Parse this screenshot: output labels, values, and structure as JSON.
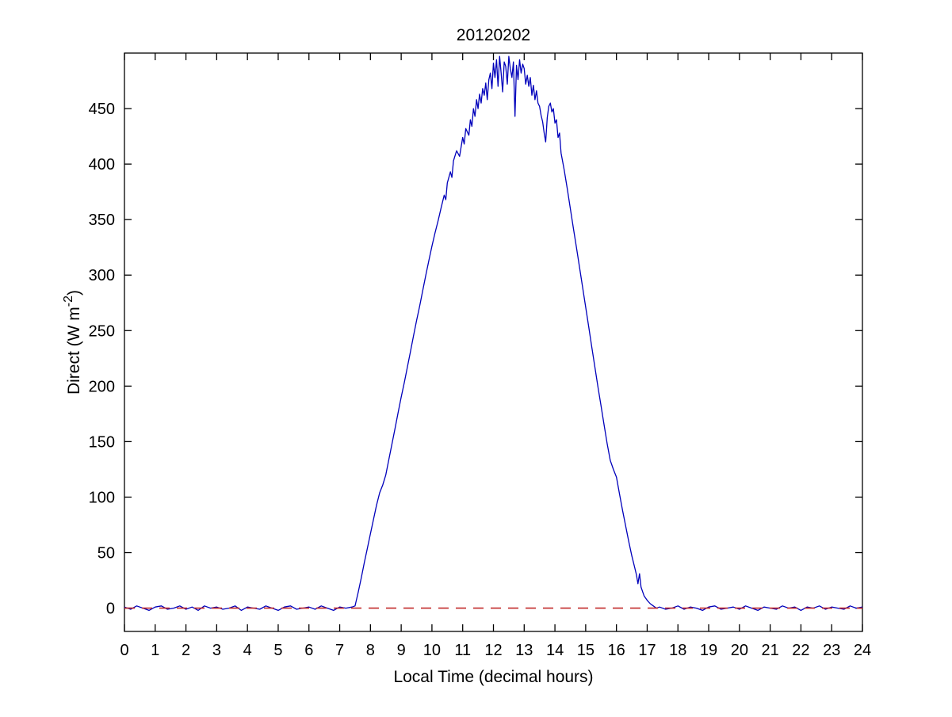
{
  "figure": {
    "title": "20120202"
  },
  "chart_data": {
    "type": "line",
    "title": "20120202",
    "xlabel": "Local Time (decimal hours)",
    "ylabel": "Direct (W m⁻²)",
    "ylabel_parts": {
      "base": "Direct (W m",
      "sup": "-2",
      "end": ")"
    },
    "xlim": [
      0,
      24
    ],
    "ylim": [
      -21,
      500
    ],
    "xticks": [
      0,
      1,
      2,
      3,
      4,
      5,
      6,
      7,
      8,
      9,
      10,
      11,
      12,
      13,
      14,
      15,
      16,
      17,
      18,
      19,
      20,
      21,
      22,
      23,
      24
    ],
    "yticks": [
      0,
      50,
      100,
      150,
      200,
      250,
      300,
      350,
      400,
      450
    ],
    "grid": false,
    "legend": "none",
    "axis_color": "#000000",
    "background_color": "#ffffff",
    "series": [
      {
        "name": "direct-irradiance",
        "color": "#0000BB",
        "style": "solid",
        "width": 1.3,
        "points": [
          [
            0,
            1
          ],
          [
            0.2,
            -1
          ],
          [
            0.4,
            2
          ],
          [
            0.6,
            0
          ],
          [
            0.8,
            -2
          ],
          [
            1,
            1
          ],
          [
            1.2,
            2
          ],
          [
            1.4,
            -1
          ],
          [
            1.6,
            0
          ],
          [
            1.8,
            2
          ],
          [
            2,
            -1
          ],
          [
            2.2,
            1
          ],
          [
            2.4,
            -2
          ],
          [
            2.6,
            2
          ],
          [
            2.8,
            0
          ],
          [
            3,
            1
          ],
          [
            3.2,
            -1
          ],
          [
            3.4,
            0
          ],
          [
            3.6,
            2
          ],
          [
            3.8,
            -2
          ],
          [
            4,
            1
          ],
          [
            4.2,
            0
          ],
          [
            4.4,
            -1
          ],
          [
            4.6,
            2
          ],
          [
            4.8,
            0
          ],
          [
            5,
            -2
          ],
          [
            5.2,
            1
          ],
          [
            5.4,
            2
          ],
          [
            5.6,
            -1
          ],
          [
            5.8,
            0
          ],
          [
            6,
            1
          ],
          [
            6.2,
            -1
          ],
          [
            6.4,
            2
          ],
          [
            6.6,
            0
          ],
          [
            6.8,
            -2
          ],
          [
            7,
            1
          ],
          [
            7.2,
            0
          ],
          [
            7.4,
            1
          ],
          [
            7.5,
            2
          ],
          [
            7.6,
            14
          ],
          [
            7.7,
            27
          ],
          [
            7.8,
            41
          ],
          [
            7.9,
            54
          ],
          [
            8,
            67
          ],
          [
            8.1,
            80
          ],
          [
            8.2,
            93
          ],
          [
            8.3,
            104
          ],
          [
            8.4,
            111
          ],
          [
            8.5,
            120
          ],
          [
            8.6,
            134
          ],
          [
            8.7,
            148
          ],
          [
            8.8,
            162
          ],
          [
            8.9,
            176
          ],
          [
            9,
            190
          ],
          [
            9.1,
            203
          ],
          [
            9.2,
            217
          ],
          [
            9.3,
            231
          ],
          [
            9.4,
            245
          ],
          [
            9.5,
            259
          ],
          [
            9.6,
            272
          ],
          [
            9.7,
            286
          ],
          [
            9.8,
            300
          ],
          [
            9.9,
            313
          ],
          [
            10,
            326
          ],
          [
            10.1,
            338
          ],
          [
            10.2,
            349
          ],
          [
            10.3,
            361
          ],
          [
            10.4,
            372
          ],
          [
            10.45,
            368
          ],
          [
            10.5,
            383
          ],
          [
            10.6,
            393
          ],
          [
            10.65,
            388
          ],
          [
            10.7,
            403
          ],
          [
            10.8,
            412
          ],
          [
            10.9,
            407
          ],
          [
            11,
            424
          ],
          [
            11.05,
            418
          ],
          [
            11.1,
            432
          ],
          [
            11.2,
            426
          ],
          [
            11.25,
            440
          ],
          [
            11.3,
            434
          ],
          [
            11.35,
            450
          ],
          [
            11.4,
            443
          ],
          [
            11.45,
            458
          ],
          [
            11.5,
            450
          ],
          [
            11.55,
            463
          ],
          [
            11.6,
            455
          ],
          [
            11.65,
            468
          ],
          [
            11.7,
            462
          ],
          [
            11.75,
            473
          ],
          [
            11.8,
            458
          ],
          [
            11.85,
            476
          ],
          [
            11.9,
            482
          ],
          [
            11.95,
            468
          ],
          [
            12,
            491
          ],
          [
            12.05,
            478
          ],
          [
            12.1,
            494
          ],
          [
            12.15,
            470
          ],
          [
            12.2,
            497
          ],
          [
            12.25,
            482
          ],
          [
            12.3,
            465
          ],
          [
            12.35,
            492
          ],
          [
            12.4,
            488
          ],
          [
            12.45,
            472
          ],
          [
            12.5,
            497
          ],
          [
            12.55,
            486
          ],
          [
            12.6,
            478
          ],
          [
            12.65,
            492
          ],
          [
            12.7,
            443
          ],
          [
            12.75,
            489
          ],
          [
            12.8,
            476
          ],
          [
            12.85,
            494
          ],
          [
            12.9,
            482
          ],
          [
            12.95,
            490
          ],
          [
            13,
            486
          ],
          [
            13.05,
            472
          ],
          [
            13.1,
            480
          ],
          [
            13.15,
            470
          ],
          [
            13.2,
            478
          ],
          [
            13.25,
            462
          ],
          [
            13.3,
            471
          ],
          [
            13.35,
            458
          ],
          [
            13.4,
            466
          ],
          [
            13.45,
            455
          ],
          [
            13.5,
            452
          ],
          [
            13.55,
            444
          ],
          [
            13.6,
            438
          ],
          [
            13.65,
            428
          ],
          [
            13.7,
            420
          ],
          [
            13.75,
            442
          ],
          [
            13.8,
            452
          ],
          [
            13.85,
            455
          ],
          [
            13.9,
            447
          ],
          [
            13.95,
            450
          ],
          [
            14,
            437
          ],
          [
            14.05,
            440
          ],
          [
            14.1,
            424
          ],
          [
            14.15,
            428
          ],
          [
            14.2,
            410
          ],
          [
            14.3,
            395
          ],
          [
            14.4,
            378
          ],
          [
            14.5,
            360
          ],
          [
            14.6,
            342
          ],
          [
            14.7,
            325
          ],
          [
            14.8,
            307
          ],
          [
            14.9,
            289
          ],
          [
            15,
            271
          ],
          [
            15.1,
            253
          ],
          [
            15.2,
            235
          ],
          [
            15.3,
            217
          ],
          [
            15.4,
            199
          ],
          [
            15.5,
            182
          ],
          [
            15.6,
            165
          ],
          [
            15.7,
            148
          ],
          [
            15.8,
            133
          ],
          [
            15.9,
            125
          ],
          [
            16,
            118
          ],
          [
            16.1,
            103
          ],
          [
            16.2,
            88
          ],
          [
            16.3,
            74
          ],
          [
            16.4,
            60
          ],
          [
            16.5,
            47
          ],
          [
            16.6,
            36
          ],
          [
            16.65,
            30
          ],
          [
            16.7,
            22
          ],
          [
            16.75,
            31
          ],
          [
            16.8,
            19
          ],
          [
            16.85,
            15
          ],
          [
            16.9,
            11
          ],
          [
            17,
            7
          ],
          [
            17.1,
            4
          ],
          [
            17.2,
            2
          ],
          [
            17.3,
            0
          ],
          [
            17.4,
            1
          ],
          [
            17.6,
            -1
          ],
          [
            17.8,
            0
          ],
          [
            18,
            2
          ],
          [
            18.2,
            -1
          ],
          [
            18.4,
            1
          ],
          [
            18.6,
            0
          ],
          [
            18.8,
            -2
          ],
          [
            19,
            1
          ],
          [
            19.2,
            2
          ],
          [
            19.4,
            -1
          ],
          [
            19.6,
            0
          ],
          [
            19.8,
            1
          ],
          [
            20,
            -1
          ],
          [
            20.2,
            2
          ],
          [
            20.4,
            0
          ],
          [
            20.6,
            -2
          ],
          [
            20.8,
            1
          ],
          [
            21,
            0
          ],
          [
            21.2,
            -1
          ],
          [
            21.4,
            2
          ],
          [
            21.6,
            0
          ],
          [
            21.8,
            1
          ],
          [
            22,
            -2
          ],
          [
            22.2,
            1
          ],
          [
            22.4,
            0
          ],
          [
            22.6,
            2
          ],
          [
            22.8,
            -1
          ],
          [
            23,
            1
          ],
          [
            23.2,
            0
          ],
          [
            23.4,
            -1
          ],
          [
            23.6,
            2
          ],
          [
            23.8,
            0
          ],
          [
            24,
            1
          ]
        ]
      },
      {
        "name": "zero-reference",
        "color": "#C22A2A",
        "style": "dashed",
        "width": 1.6,
        "points": [
          [
            0,
            0
          ],
          [
            24,
            0
          ]
        ]
      }
    ]
  }
}
